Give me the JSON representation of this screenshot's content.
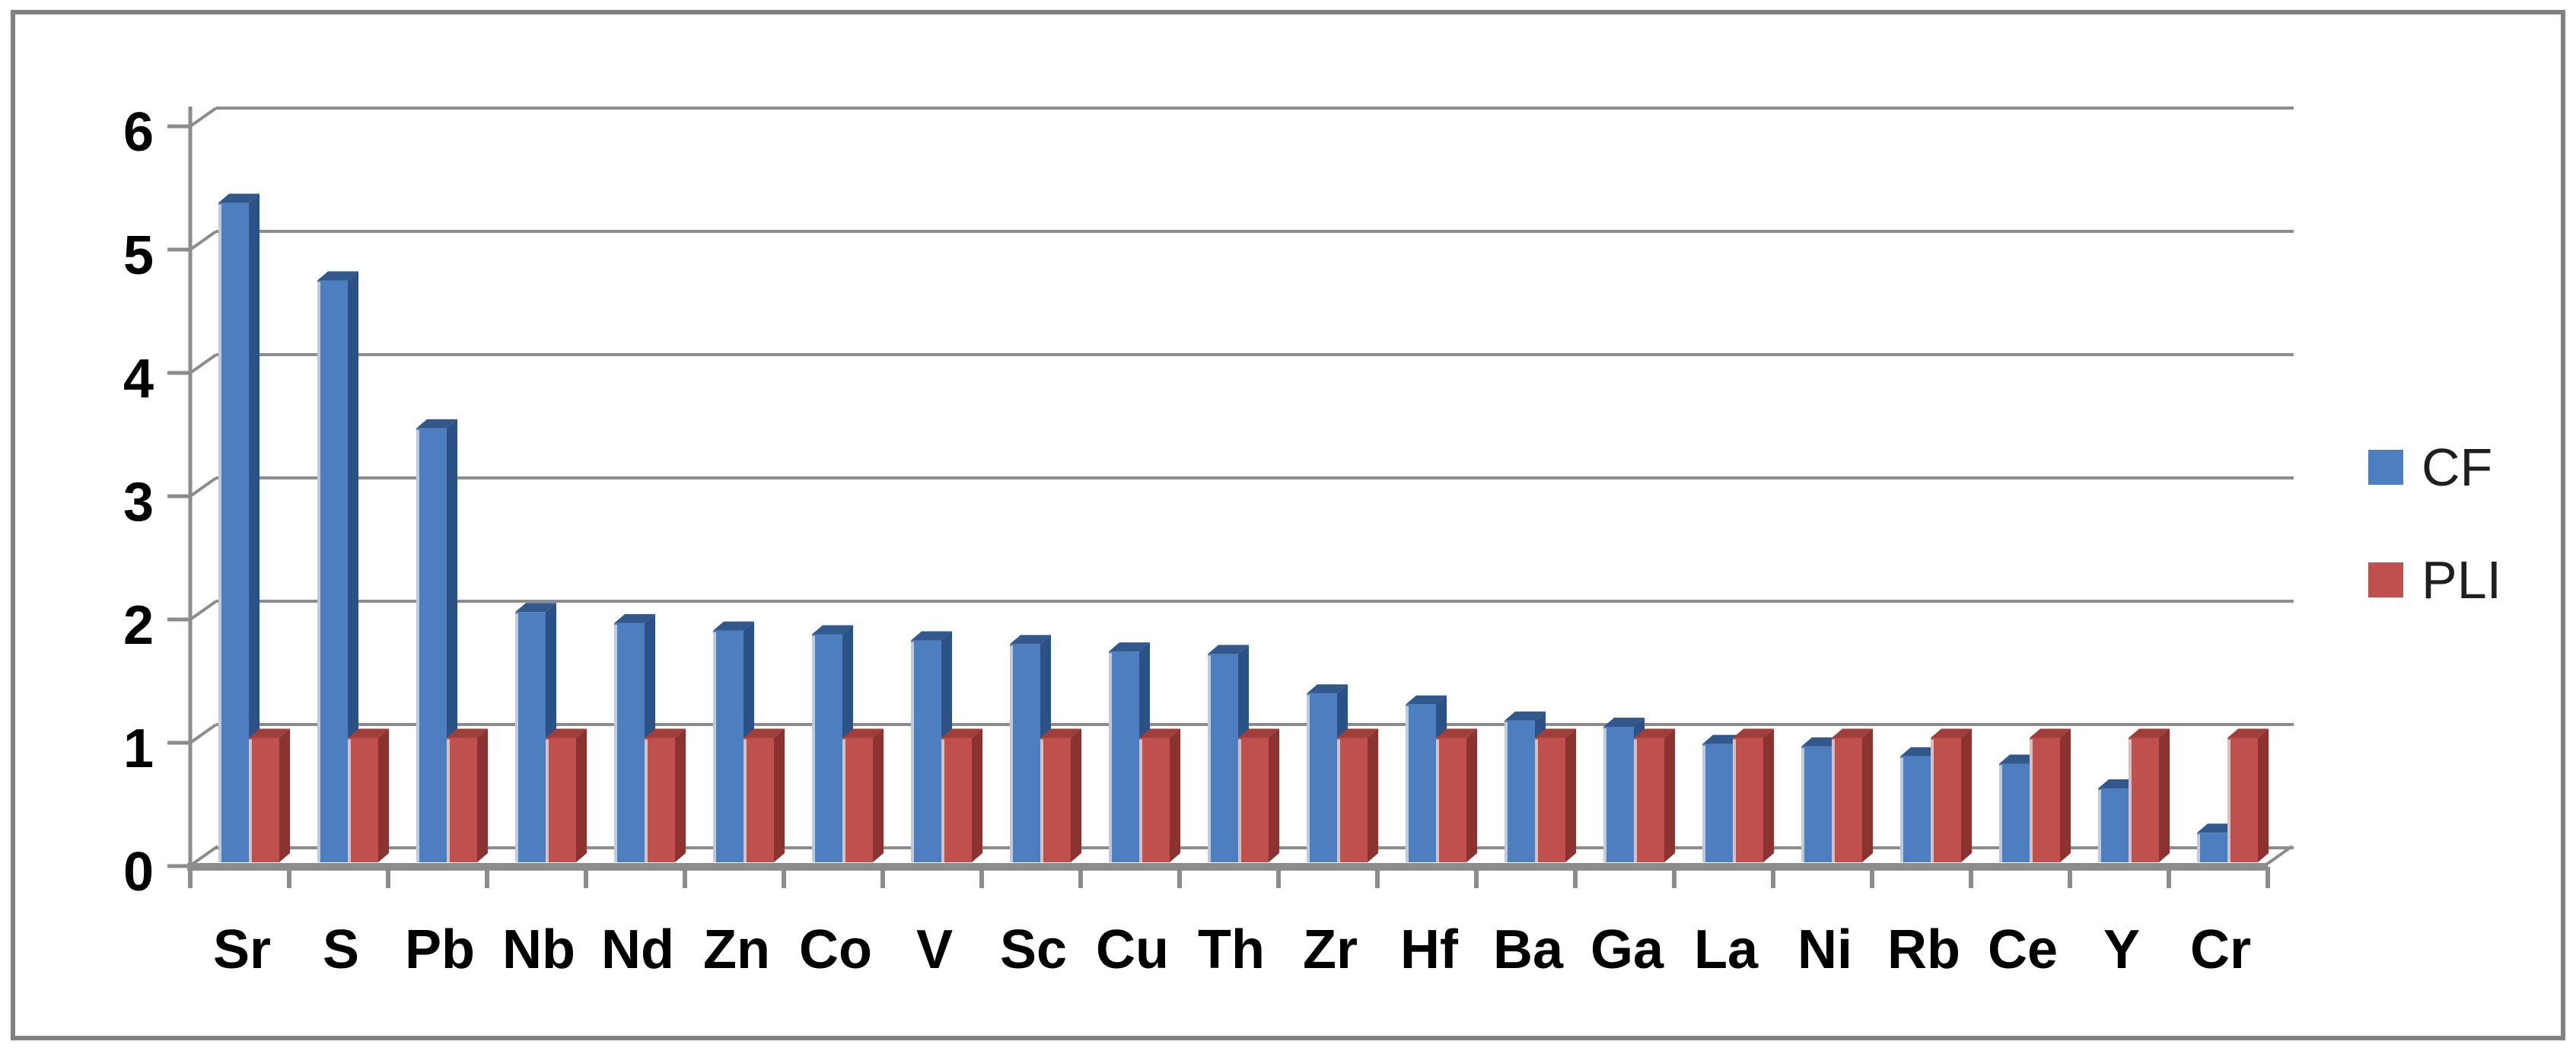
{
  "chart_data": {
    "type": "bar",
    "style": "3d-clustered-column",
    "title": "",
    "xlabel": "",
    "ylabel": "",
    "ylim": [
      0,
      6
    ],
    "y_ticks": [
      0,
      1,
      2,
      3,
      4,
      5,
      6
    ],
    "grid": true,
    "legend_position": "right",
    "categories": [
      "Sr",
      "S",
      "Pb",
      "Nb",
      "Nd",
      "Zn",
      "Co",
      "V",
      "Sc",
      "Cu",
      "Th",
      "Zr",
      "Hf",
      "Ba",
      "Ga",
      "La",
      "Ni",
      "Rb",
      "Ce",
      "Y",
      "Cr"
    ],
    "series": [
      {
        "name": "CF",
        "color": "#4d7ebf",
        "values": [
          5.38,
          4.75,
          3.55,
          2.06,
          1.97,
          1.91,
          1.88,
          1.83,
          1.8,
          1.74,
          1.72,
          1.4,
          1.31,
          1.18,
          1.13,
          0.99,
          0.97,
          0.89,
          0.83,
          0.63,
          0.27
        ]
      },
      {
        "name": "PLI",
        "color": "#c0504d",
        "values": [
          1.04,
          1.04,
          1.04,
          1.04,
          1.04,
          1.04,
          1.04,
          1.04,
          1.04,
          1.04,
          1.04,
          1.04,
          1.04,
          1.04,
          1.04,
          1.04,
          1.04,
          1.04,
          1.04,
          1.04,
          1.04
        ]
      }
    ],
    "palette": {
      "cf_front": "#4d7ebf",
      "cf_top": "#33598c",
      "cf_side": "#2c5185",
      "cf_highlight": "#b9cce5",
      "pli_front": "#c0504d",
      "pli_top": "#a03e3b",
      "pli_side": "#8a3330",
      "pli_highlight": "#e5bbb8",
      "gridline": "#8c8c8c",
      "axis": "#8c8c8c",
      "border": "#818181",
      "text": "#000000",
      "legend_text": "#1f1f1f",
      "background": "#ffffff"
    }
  },
  "legend": {
    "items": [
      {
        "label": "CF",
        "color": "#4d7ebf"
      },
      {
        "label": "PLI",
        "color": "#c0504d"
      }
    ]
  }
}
